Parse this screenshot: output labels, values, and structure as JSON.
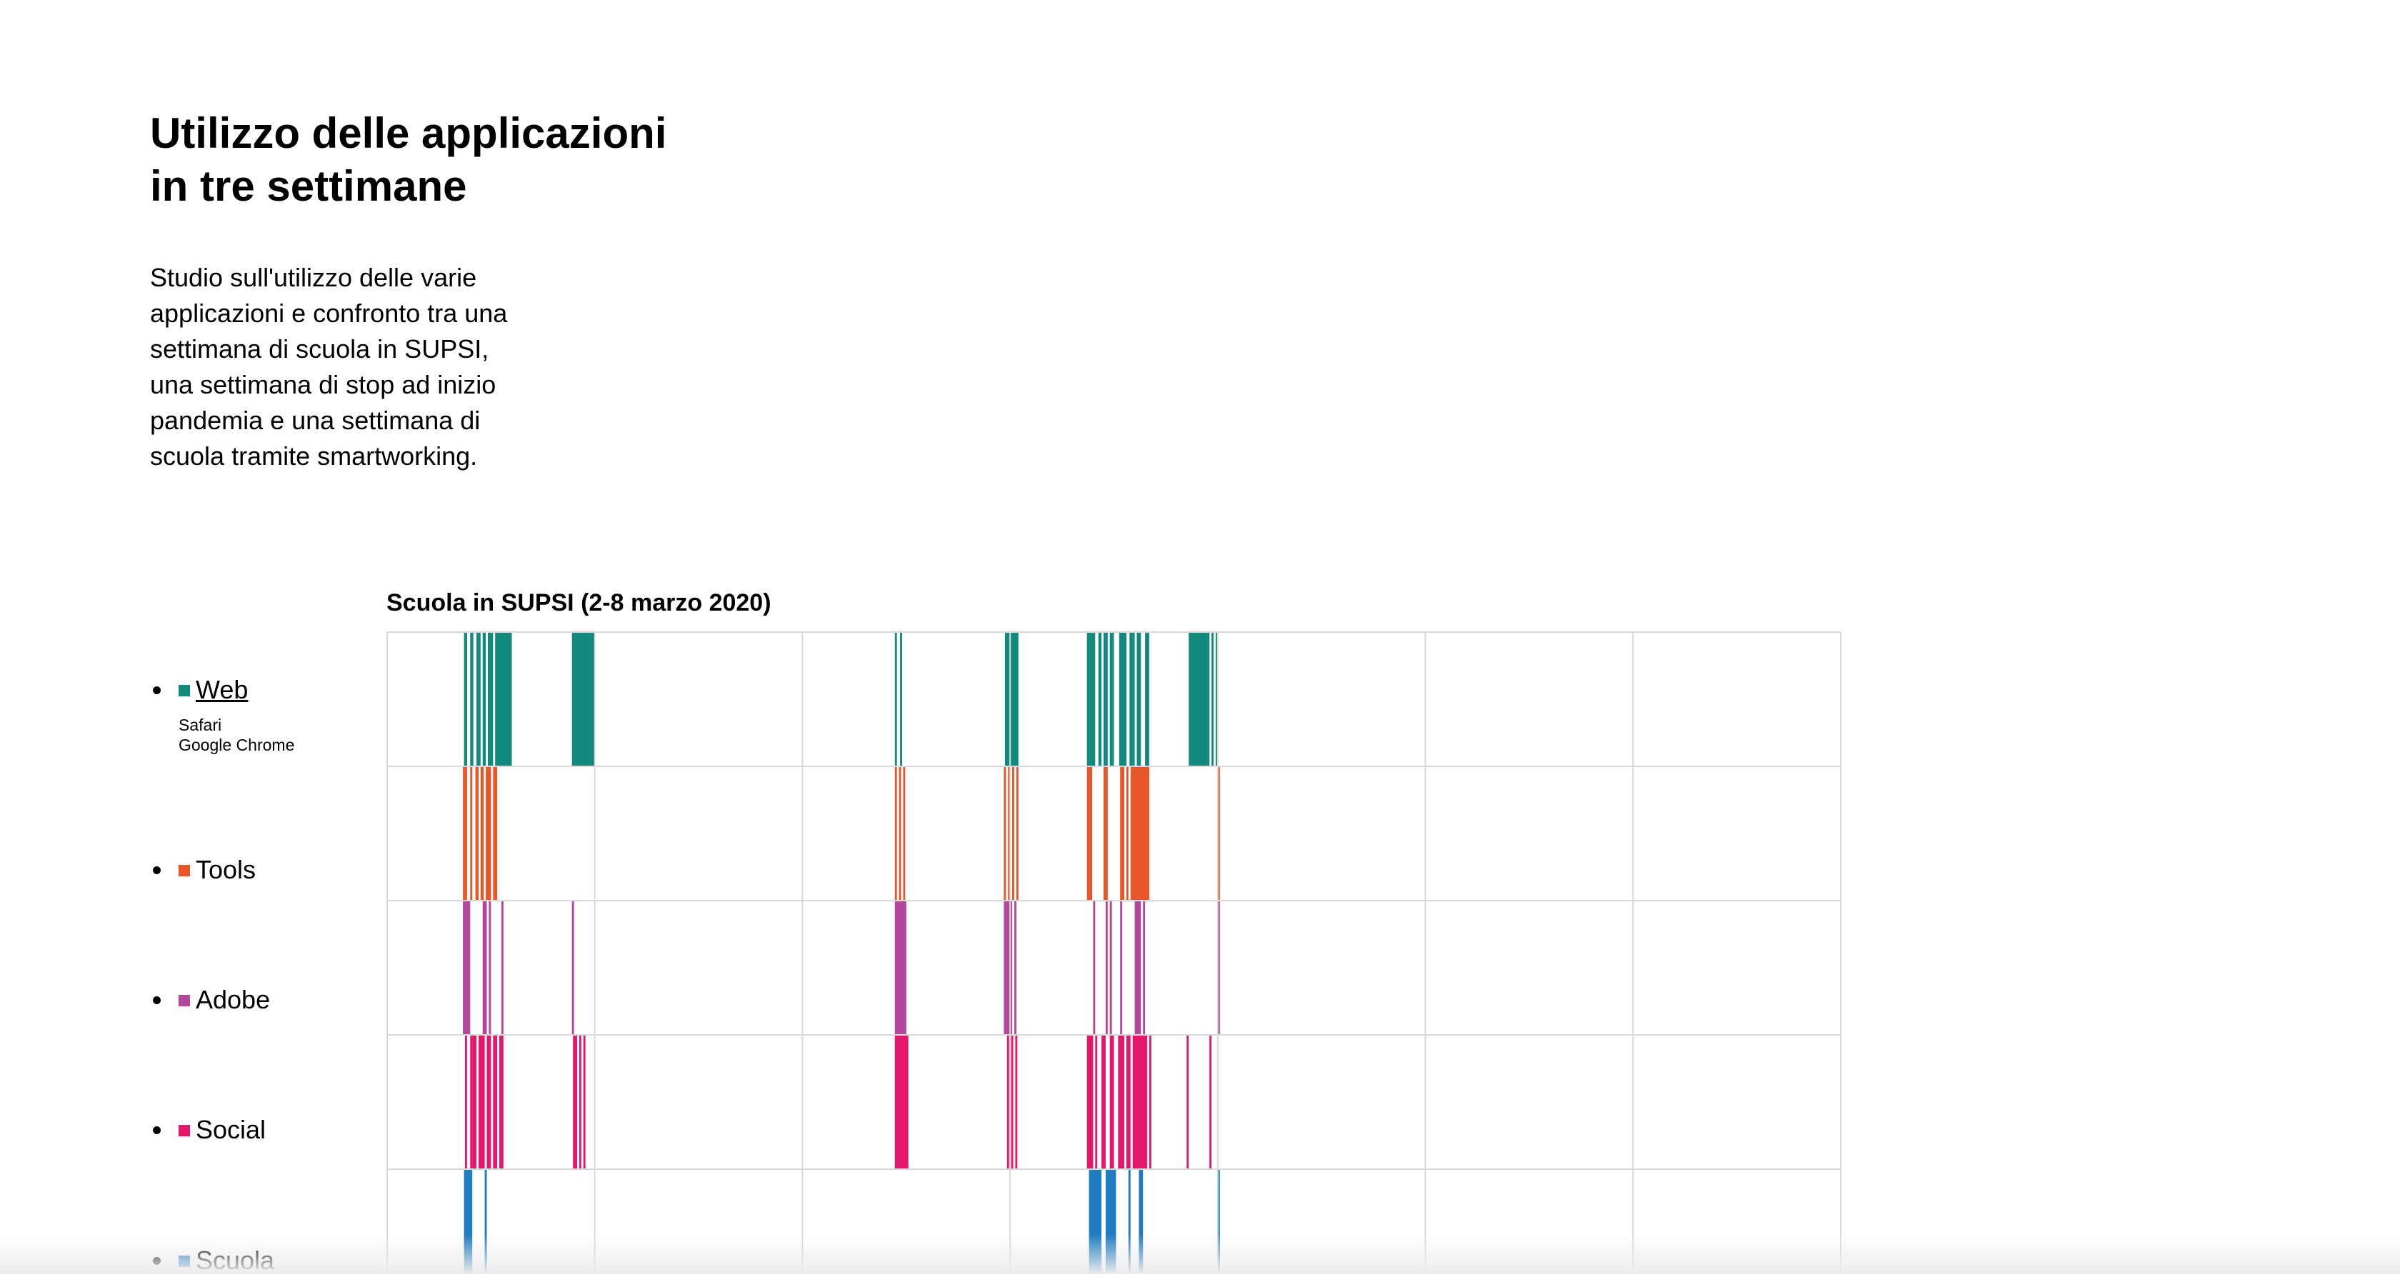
{
  "title_lines": [
    "Utilizzo delle applicazioni",
    "in tre settimane"
  ],
  "intro_lines": [
    "Studio sull'utilizzo delle varie",
    "applicazioni e confronto tra una",
    "settimana di scuola in SUPSI,",
    "una settimana di stop ad inizio",
    "pandemia e una settimana di",
    "scuola tramite smartworking."
  ],
  "legend": [
    {
      "label": " Web",
      "color": "#138a7e",
      "apps": [
        "Safari",
        "Google Chrome"
      ]
    },
    {
      "label": " Tools",
      "color": "#e8562a"
    },
    {
      "label": " Adobe",
      "color": "#b3479b"
    },
    {
      "label": " Social",
      "color": "#e4176b"
    },
    {
      "label": " Scuola",
      "color": "#1f7cc1"
    }
  ],
  "chart_data": {
    "type": "timeline",
    "title": "Scuola in SUPSI (2-8 marzo 2020)",
    "x_unit": "day",
    "xlim": [
      0,
      7
    ],
    "days": 7,
    "grid": true,
    "series": [
      {
        "name": "Web",
        "color": "#138a7e",
        "intervals": [
          [
            0.37,
            0.385
          ],
          [
            0.4,
            0.415
          ],
          [
            0.43,
            0.45
          ],
          [
            0.46,
            0.475
          ],
          [
            0.485,
            0.51
          ],
          [
            0.52,
            0.6
          ],
          [
            0.89,
            1.0
          ],
          [
            2.445,
            2.455
          ],
          [
            2.47,
            2.48
          ],
          [
            2.975,
            3.04
          ],
          [
            3.37,
            3.41
          ],
          [
            3.425,
            3.44
          ],
          [
            3.45,
            3.47
          ],
          [
            3.48,
            3.5
          ],
          [
            3.525,
            3.56
          ],
          [
            3.575,
            3.6
          ],
          [
            3.61,
            3.63
          ],
          [
            3.65,
            3.67
          ],
          [
            3.86,
            3.96
          ],
          [
            3.97,
            3.98
          ],
          [
            3.99,
            4.0
          ]
        ]
      },
      {
        "name": "Tools",
        "color": "#e8562a",
        "intervals": [
          [
            0.365,
            0.385
          ],
          [
            0.4,
            0.41
          ],
          [
            0.425,
            0.44
          ],
          [
            0.45,
            0.465
          ],
          [
            0.475,
            0.5
          ],
          [
            0.51,
            0.53
          ],
          [
            2.445,
            2.455
          ],
          [
            2.465,
            2.475
          ],
          [
            2.485,
            2.495
          ],
          [
            2.97,
            2.98
          ],
          [
            2.99,
            3.0
          ],
          [
            3.01,
            3.02
          ],
          [
            3.03,
            3.04
          ],
          [
            3.37,
            3.395
          ],
          [
            3.45,
            3.47
          ],
          [
            3.53,
            3.55
          ],
          [
            3.56,
            3.57
          ],
          [
            3.58,
            3.67
          ],
          [
            4.0,
            4.01
          ]
        ]
      },
      {
        "name": "Adobe",
        "color": "#b3479b",
        "intervals": [
          [
            0.365,
            0.4
          ],
          [
            0.46,
            0.48
          ],
          [
            0.49,
            0.5
          ],
          [
            0.55,
            0.56
          ],
          [
            0.89,
            0.9
          ],
          [
            2.445,
            2.5
          ],
          [
            2.97,
            3.01
          ],
          [
            3.02,
            3.03
          ],
          [
            3.4,
            3.41
          ],
          [
            3.46,
            3.47
          ],
          [
            3.48,
            3.49
          ],
          [
            3.53,
            3.54
          ],
          [
            3.6,
            3.63
          ],
          [
            3.64,
            3.65
          ],
          [
            4.0,
            4.01
          ]
        ]
      },
      {
        "name": "Social",
        "color": "#e4176b",
        "intervals": [
          [
            0.375,
            0.385
          ],
          [
            0.4,
            0.43
          ],
          [
            0.44,
            0.47
          ],
          [
            0.48,
            0.5
          ],
          [
            0.51,
            0.53
          ],
          [
            0.54,
            0.56
          ],
          [
            0.895,
            0.915
          ],
          [
            0.925,
            0.935
          ],
          [
            0.945,
            0.955
          ],
          [
            2.445,
            2.51
          ],
          [
            2.985,
            2.995
          ],
          [
            3.005,
            3.015
          ],
          [
            3.025,
            3.035
          ],
          [
            3.37,
            3.4
          ],
          [
            3.41,
            3.42
          ],
          [
            3.44,
            3.46
          ],
          [
            3.48,
            3.5
          ],
          [
            3.52,
            3.55
          ],
          [
            3.56,
            3.58
          ],
          [
            3.59,
            3.66
          ],
          [
            3.67,
            3.68
          ],
          [
            3.85,
            3.86
          ],
          [
            3.96,
            3.97
          ]
        ]
      },
      {
        "name": "Scuola",
        "color": "#1f7cc1",
        "intervals": [
          [
            0.37,
            0.41
          ],
          [
            0.47,
            0.48
          ],
          [
            3.38,
            3.44
          ],
          [
            3.46,
            3.51
          ],
          [
            3.57,
            3.58
          ],
          [
            3.62,
            3.64
          ],
          [
            4.0,
            4.01
          ]
        ]
      }
    ]
  }
}
